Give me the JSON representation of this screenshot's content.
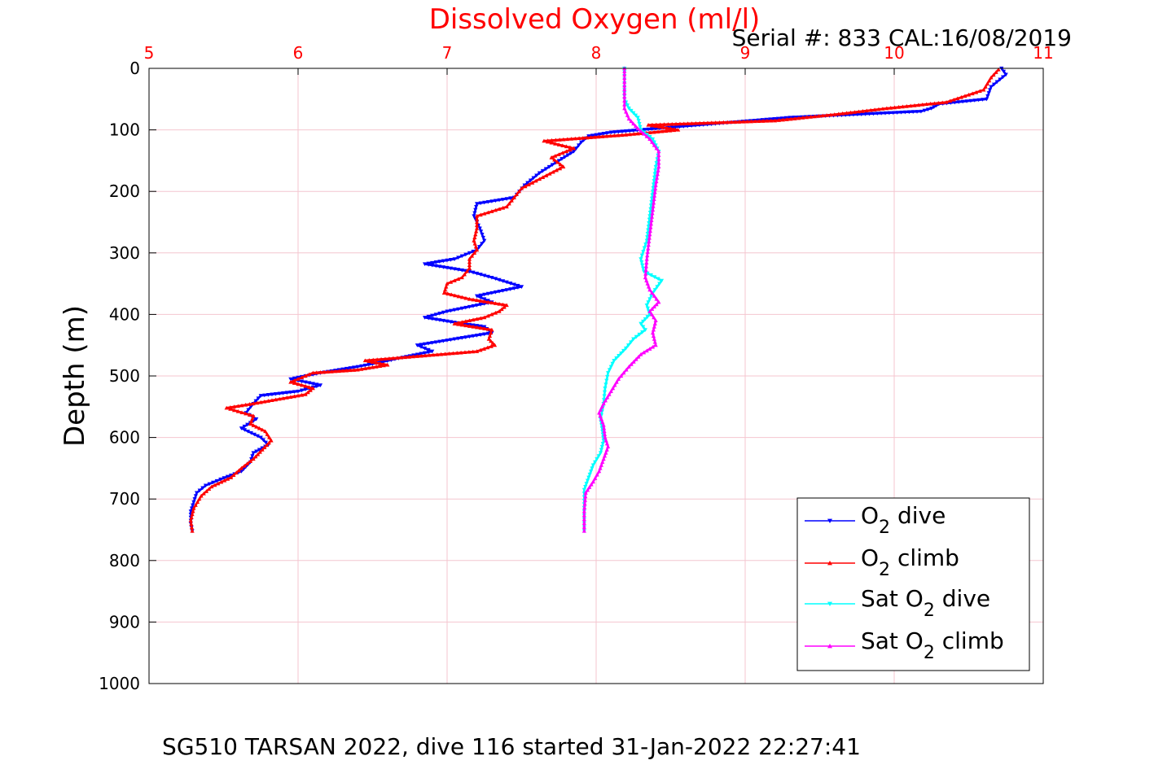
{
  "chart_data": {
    "type": "line",
    "title": "Dissolved Oxygen (ml/l)",
    "subtitle": "Serial #: 833  CAL:16/08/2019",
    "footer": "SG510 TARSAN 2022, dive 116 started 31-Jan-2022 22:27:41",
    "ylabel": "Depth (m)",
    "xlim": [
      5,
      11
    ],
    "ylim": [
      0,
      1000
    ],
    "y_reversed": true,
    "x_axis_position": "top",
    "grid": true,
    "legend_position": "bottom-right",
    "x_ticks": [
      {
        "value": 5,
        "label": "5"
      },
      {
        "value": 6,
        "label": "6"
      },
      {
        "value": 7,
        "label": "7"
      },
      {
        "value": 8,
        "label": "8"
      },
      {
        "value": 9,
        "label": "9"
      },
      {
        "value": 10,
        "label": "10"
      },
      {
        "value": 11,
        "label": "11"
      }
    ],
    "y_ticks": [
      {
        "value": 0,
        "label": "0"
      },
      {
        "value": 100,
        "label": "100"
      },
      {
        "value": 200,
        "label": "200"
      },
      {
        "value": 300,
        "label": "300"
      },
      {
        "value": 400,
        "label": "400"
      },
      {
        "value": 500,
        "label": "500"
      },
      {
        "value": 600,
        "label": "600"
      },
      {
        "value": 700,
        "label": "700"
      },
      {
        "value": 800,
        "label": "800"
      },
      {
        "value": 900,
        "label": "900"
      },
      {
        "value": 1000,
        "label": "1000"
      }
    ],
    "colors": {
      "title": "#ff0000",
      "x_ticks": "#ff0000",
      "grid": "#f4c6cf",
      "o2_dive": "#0000ff",
      "o2_climb": "#ff0000",
      "sat_dive": "#00ffff",
      "sat_climb": "#ff00ff"
    },
    "series": [
      {
        "key": "o2_dive",
        "legend_main": "O",
        "legend_sub": "2",
        "legend_post": " dive",
        "marker": "triangle-down",
        "points": [
          [
            10.72,
            0
          ],
          [
            10.75,
            10
          ],
          [
            10.65,
            30
          ],
          [
            10.62,
            50
          ],
          [
            10.3,
            58
          ],
          [
            10.25,
            65
          ],
          [
            10.18,
            70
          ],
          [
            9.3,
            80
          ],
          [
            8.8,
            90
          ],
          [
            8.4,
            98
          ],
          [
            8.1,
            104
          ],
          [
            7.95,
            110
          ],
          [
            7.9,
            120
          ],
          [
            7.85,
            135
          ],
          [
            7.75,
            150
          ],
          [
            7.62,
            170
          ],
          [
            7.52,
            190
          ],
          [
            7.45,
            210
          ],
          [
            7.2,
            220
          ],
          [
            7.18,
            240
          ],
          [
            7.22,
            260
          ],
          [
            7.25,
            280
          ],
          [
            7.2,
            295
          ],
          [
            7.05,
            310
          ],
          [
            6.85,
            318
          ],
          [
            7.15,
            330
          ],
          [
            7.3,
            340
          ],
          [
            7.5,
            355
          ],
          [
            7.2,
            370
          ],
          [
            7.3,
            380
          ],
          [
            7.0,
            395
          ],
          [
            6.85,
            405
          ],
          [
            7.1,
            415
          ],
          [
            7.25,
            420
          ],
          [
            7.3,
            430
          ],
          [
            7.05,
            440
          ],
          [
            6.8,
            450
          ],
          [
            6.9,
            460
          ],
          [
            6.7,
            470
          ],
          [
            6.55,
            478
          ],
          [
            6.4,
            485
          ],
          [
            6.15,
            495
          ],
          [
            5.95,
            505
          ],
          [
            6.15,
            515
          ],
          [
            6.0,
            525
          ],
          [
            5.75,
            532
          ],
          [
            5.7,
            545
          ],
          [
            5.65,
            560
          ],
          [
            5.72,
            570
          ],
          [
            5.62,
            585
          ],
          [
            5.75,
            600
          ],
          [
            5.8,
            612
          ],
          [
            5.7,
            625
          ],
          [
            5.68,
            640
          ],
          [
            5.62,
            655
          ],
          [
            5.48,
            668
          ],
          [
            5.38,
            678
          ],
          [
            5.32,
            690
          ],
          [
            5.3,
            705
          ],
          [
            5.28,
            720
          ],
          [
            5.28,
            740
          ],
          [
            5.29,
            752
          ]
        ]
      },
      {
        "key": "o2_climb",
        "legend_main": "O",
        "legend_sub": "2",
        "legend_post": " climb",
        "marker": "triangle-up",
        "points": [
          [
            5.29,
            752
          ],
          [
            5.28,
            735
          ],
          [
            5.3,
            715
          ],
          [
            5.35,
            695
          ],
          [
            5.42,
            680
          ],
          [
            5.55,
            665
          ],
          [
            5.62,
            650
          ],
          [
            5.7,
            635
          ],
          [
            5.76,
            620
          ],
          [
            5.82,
            605
          ],
          [
            5.78,
            590
          ],
          [
            5.68,
            578
          ],
          [
            5.7,
            565
          ],
          [
            5.52,
            552
          ],
          [
            5.7,
            545
          ],
          [
            6.05,
            530
          ],
          [
            6.1,
            520
          ],
          [
            5.95,
            510
          ],
          [
            6.1,
            495
          ],
          [
            6.4,
            490
          ],
          [
            6.6,
            482
          ],
          [
            6.45,
            475
          ],
          [
            6.8,
            468
          ],
          [
            7.2,
            460
          ],
          [
            7.32,
            450
          ],
          [
            7.28,
            440
          ],
          [
            7.3,
            425
          ],
          [
            7.05,
            415
          ],
          [
            7.25,
            405
          ],
          [
            7.35,
            395
          ],
          [
            7.4,
            385
          ],
          [
            7.15,
            375
          ],
          [
            6.98,
            365
          ],
          [
            7.0,
            350
          ],
          [
            7.1,
            340
          ],
          [
            7.15,
            325
          ],
          [
            7.15,
            310
          ],
          [
            7.2,
            295
          ],
          [
            7.18,
            280
          ],
          [
            7.2,
            260
          ],
          [
            7.2,
            240
          ],
          [
            7.4,
            225
          ],
          [
            7.45,
            210
          ],
          [
            7.5,
            195
          ],
          [
            7.62,
            180
          ],
          [
            7.78,
            160
          ],
          [
            7.7,
            145
          ],
          [
            7.85,
            130
          ],
          [
            7.65,
            118
          ],
          [
            8.2,
            108
          ],
          [
            8.55,
            100
          ],
          [
            8.35,
            92
          ],
          [
            9.2,
            85
          ],
          [
            9.6,
            75
          ],
          [
            9.95,
            65
          ],
          [
            10.35,
            55
          ],
          [
            10.6,
            35
          ],
          [
            10.65,
            15
          ],
          [
            10.7,
            2
          ]
        ]
      },
      {
        "key": "sat_dive",
        "legend_main": "Sat O",
        "legend_sub": "2",
        "legend_post": " dive",
        "marker": "triangle-down",
        "points": [
          [
            8.19,
            0
          ],
          [
            8.19,
            30
          ],
          [
            8.19,
            50
          ],
          [
            8.22,
            65
          ],
          [
            8.28,
            80
          ],
          [
            8.3,
            100
          ],
          [
            8.38,
            115
          ],
          [
            8.42,
            135
          ],
          [
            8.4,
            160
          ],
          [
            8.38,
            200
          ],
          [
            8.36,
            240
          ],
          [
            8.34,
            280
          ],
          [
            8.3,
            310
          ],
          [
            8.32,
            330
          ],
          [
            8.44,
            345
          ],
          [
            8.38,
            365
          ],
          [
            8.34,
            385
          ],
          [
            8.36,
            400
          ],
          [
            8.3,
            415
          ],
          [
            8.33,
            425
          ],
          [
            8.25,
            440
          ],
          [
            8.2,
            455
          ],
          [
            8.12,
            475
          ],
          [
            8.08,
            495
          ],
          [
            8.06,
            520
          ],
          [
            8.05,
            545
          ],
          [
            8.03,
            570
          ],
          [
            8.04,
            585
          ],
          [
            8.05,
            605
          ],
          [
            8.03,
            625
          ],
          [
            7.98,
            645
          ],
          [
            7.95,
            665
          ],
          [
            7.92,
            685
          ],
          [
            7.92,
            720
          ],
          [
            7.92,
            752
          ]
        ]
      },
      {
        "key": "sat_climb",
        "legend_main": "Sat O",
        "legend_sub": "2",
        "legend_post": " climb",
        "marker": "triangle-up",
        "points": [
          [
            7.92,
            752
          ],
          [
            7.92,
            720
          ],
          [
            7.93,
            690
          ],
          [
            7.98,
            672
          ],
          [
            8.02,
            655
          ],
          [
            8.05,
            635
          ],
          [
            8.08,
            615
          ],
          [
            8.06,
            600
          ],
          [
            8.05,
            580
          ],
          [
            8.02,
            560
          ],
          [
            8.05,
            545
          ],
          [
            8.1,
            525
          ],
          [
            8.15,
            505
          ],
          [
            8.22,
            485
          ],
          [
            8.3,
            465
          ],
          [
            8.4,
            450
          ],
          [
            8.38,
            430
          ],
          [
            8.4,
            410
          ],
          [
            8.36,
            395
          ],
          [
            8.42,
            380
          ],
          [
            8.36,
            360
          ],
          [
            8.33,
            340
          ],
          [
            8.34,
            310
          ],
          [
            8.36,
            270
          ],
          [
            8.38,
            230
          ],
          [
            8.4,
            190
          ],
          [
            8.42,
            160
          ],
          [
            8.42,
            135
          ],
          [
            8.36,
            115
          ],
          [
            8.28,
            98
          ],
          [
            8.22,
            82
          ],
          [
            8.19,
            65
          ],
          [
            8.19,
            40
          ],
          [
            8.19,
            10
          ],
          [
            8.19,
            0
          ]
        ]
      }
    ]
  }
}
